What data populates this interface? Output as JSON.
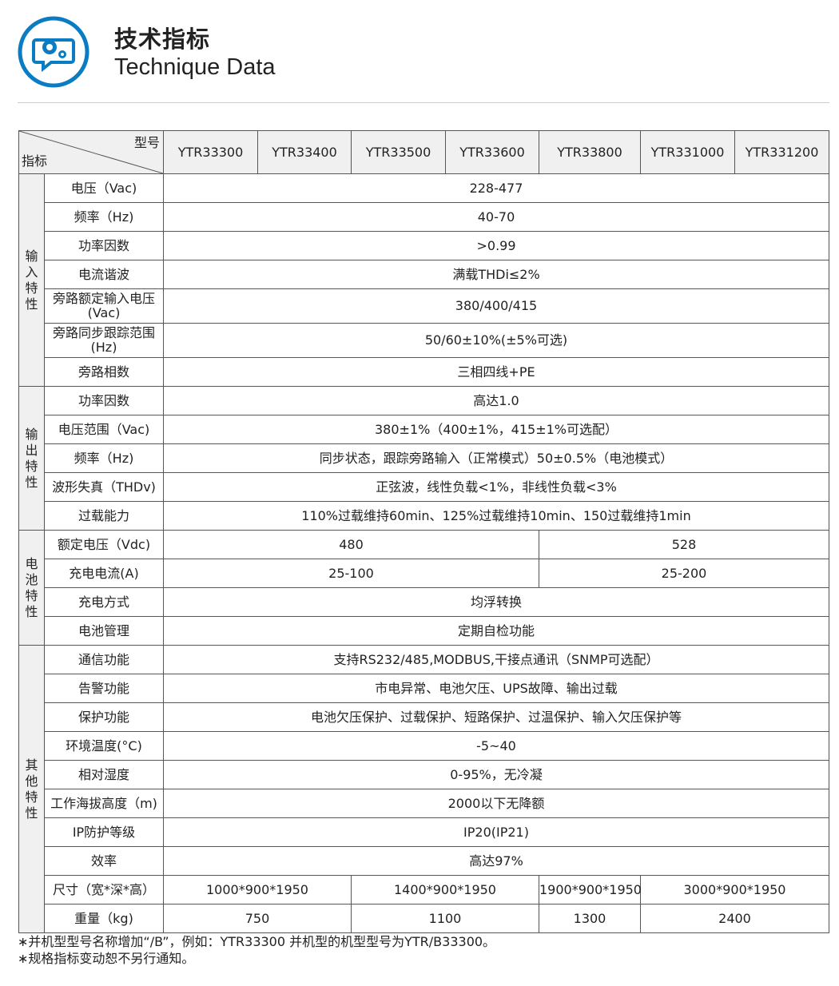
{
  "header": {
    "title_cn": "技术指标",
    "title_en": "Technique Data",
    "icon": "gears-chat-icon",
    "accent": "#0a7cc4"
  },
  "table": {
    "corner_top": "型号",
    "corner_bottom": "指标",
    "models": [
      "YTR33300",
      "YTR33400",
      "YTR33500",
      "YTR33600",
      "YTR33800",
      "YTR331000",
      "YTR331200"
    ],
    "groups": [
      {
        "name": "输入特性",
        "rows": [
          {
            "label": "电压（Vac)",
            "cells": [
              {
                "text": "228-477",
                "span": 7
              }
            ]
          },
          {
            "label": "频率（Hz)",
            "cells": [
              {
                "text": "40-70",
                "span": 7
              }
            ]
          },
          {
            "label": "功率因数",
            "cells": [
              {
                "text": ">0.99",
                "span": 7
              }
            ]
          },
          {
            "label": "电流谐波",
            "cells": [
              {
                "text": "满载THDi≤2%",
                "span": 7
              }
            ]
          },
          {
            "label": "旁路额定输入电压(Vac)",
            "tall": true,
            "cells": [
              {
                "text": "380/400/415",
                "span": 7
              }
            ]
          },
          {
            "label": "旁路同步跟踪范围(Hz)",
            "tall": true,
            "cells": [
              {
                "text": "50/60±10%(±5%可选)",
                "span": 7
              }
            ]
          },
          {
            "label": "旁路相数",
            "cells": [
              {
                "text": "三相四线+PE",
                "span": 7
              }
            ]
          }
        ]
      },
      {
        "name": "输出特性",
        "rows": [
          {
            "label": "功率因数",
            "cells": [
              {
                "text": "高达1.0",
                "span": 7
              }
            ]
          },
          {
            "label": "电压范围（Vac)",
            "cells": [
              {
                "text": "380±1%（400±1%，415±1%可选配）",
                "span": 7
              }
            ]
          },
          {
            "label": "频率（Hz)",
            "cells": [
              {
                "text": "同步状态，跟踪旁路输入（正常模式）50±0.5%（电池模式）",
                "span": 7
              }
            ]
          },
          {
            "label": "波形失真（THDv)",
            "cells": [
              {
                "text": "正弦波，线性负载<1%，非线性负载<3%",
                "span": 7
              }
            ]
          },
          {
            "label": "过载能力",
            "cells": [
              {
                "text": "110%过载维持60min、125%过载维持10min、150过载维持1min",
                "span": 7
              }
            ]
          }
        ]
      },
      {
        "name": "电池特性",
        "rows": [
          {
            "label": "额定电压（Vdc)",
            "cells": [
              {
                "text": "480",
                "span": 4
              },
              {
                "text": "528",
                "span": 3
              }
            ]
          },
          {
            "label": "充电电流(A)",
            "cells": [
              {
                "text": "25-100",
                "span": 4
              },
              {
                "text": "25-200",
                "span": 3
              }
            ]
          },
          {
            "label": "充电方式",
            "cells": [
              {
                "text": "均浮转换",
                "span": 7
              }
            ]
          },
          {
            "label": "电池管理",
            "cells": [
              {
                "text": "定期自检功能",
                "span": 7
              }
            ]
          }
        ]
      },
      {
        "name": "其他特性",
        "rows": [
          {
            "label": "通信功能",
            "cells": [
              {
                "text": "支持RS232/485,MODBUS,干接点通讯（SNMP可选配）",
                "span": 7
              }
            ]
          },
          {
            "label": "告警功能",
            "cells": [
              {
                "text": "市电异常、电池欠压、UPS故障、输出过载",
                "span": 7
              }
            ]
          },
          {
            "label": "保护功能",
            "cells": [
              {
                "text": "电池欠压保护、过载保护、短路保护、过温保护、输入欠压保护等",
                "span": 7
              }
            ]
          },
          {
            "label": "环境温度(°C)",
            "cells": [
              {
                "text": "-5~40",
                "span": 7
              }
            ]
          },
          {
            "label": "相对湿度",
            "cells": [
              {
                "text": "0-95%，无冷凝",
                "span": 7
              }
            ]
          },
          {
            "label": "工作海拔高度（m)",
            "cells": [
              {
                "text": "2000以下无降额",
                "span": 7
              }
            ]
          },
          {
            "label": "IP防护等级",
            "cells": [
              {
                "text": "IP20(IP21)",
                "span": 7
              }
            ]
          },
          {
            "label": "效率",
            "cells": [
              {
                "text": "高达97%",
                "span": 7
              }
            ]
          },
          {
            "label": "尺寸（宽*深*高）",
            "cells": [
              {
                "text": "1000*900*1950",
                "span": 2
              },
              {
                "text": "1400*900*1950",
                "span": 2
              },
              {
                "text": "1900*900*1950",
                "span": 1
              },
              {
                "text": "3000*900*1950",
                "span": 2
              }
            ]
          },
          {
            "label": "重量（kg)",
            "cells": [
              {
                "text": "750",
                "span": 2
              },
              {
                "text": "1100",
                "span": 2
              },
              {
                "text": "1300",
                "span": 1
              },
              {
                "text": "2400",
                "span": 2
              }
            ]
          }
        ]
      }
    ]
  },
  "notes": [
    "∗并机型型号名称增加“/B”，例如：YTR33300 并机型的机型型号为YTR/B33300。",
    "∗规格指标变动恕不另行通知。"
  ]
}
